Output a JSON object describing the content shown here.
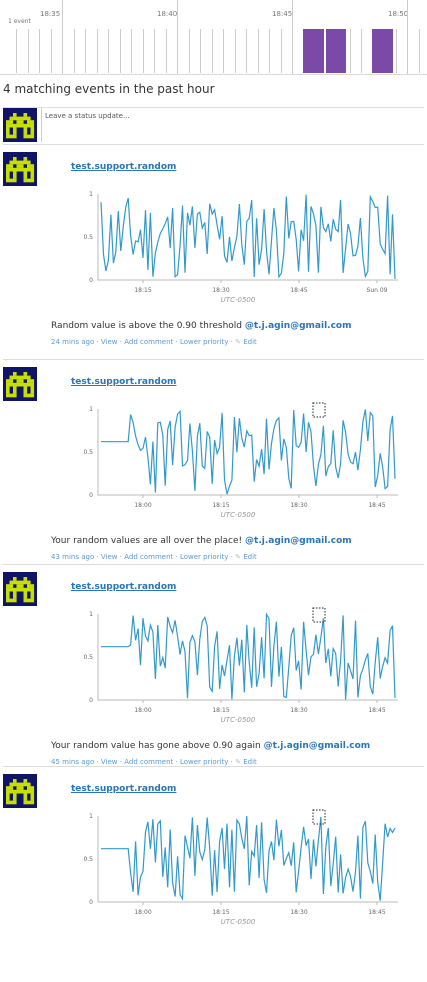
{
  "timeline": {
    "count_label": "1 event",
    "ticks": [
      "18:35",
      "18:40",
      "18:45",
      "18:50"
    ]
  },
  "headline": "4 matching events in the past hour",
  "status": {
    "placeholder": "Leave a status update..."
  },
  "colors": {
    "accent": "#2a74b8",
    "series": "#3399cc",
    "bar": "#7b4aa6",
    "avatar_bg": "#101464",
    "avatar_fg": "#c8e000"
  },
  "events": [
    {
      "source": "test.support.random",
      "message": "Random value is above the 0.90 threshold",
      "mention": "@t.j.agin@gmail.com",
      "meta": {
        "age": "24 mins ago",
        "view": "View",
        "comment": "Add comment",
        "priority": "Lower priority",
        "edit": "Edit"
      },
      "chart_data": {
        "type": "line",
        "y_ticks": [
          "0",
          "0.5",
          "1"
        ],
        "x_ticks": [
          "18:15",
          "18:30",
          "18:45",
          "Sun 09"
        ],
        "xlabel": "UTC-0500",
        "ylim": [
          0,
          1
        ],
        "seed": 11,
        "flat_start": false
      }
    },
    {
      "source": "test.support.random",
      "message": "Your random values are all over the place!",
      "mention": "@t.j.agin@gmail.com",
      "meta": {
        "age": "43 mins ago",
        "view": "View",
        "comment": "Add comment",
        "priority": "Lower priority",
        "edit": "Edit"
      },
      "chart_data": {
        "type": "line",
        "y_ticks": [
          "0",
          "0.5",
          "1"
        ],
        "x_ticks": [
          "18:00",
          "18:15",
          "18:30",
          "18:45"
        ],
        "xlabel": "UTC-0500",
        "ylim": [
          0,
          1
        ],
        "seed": 23,
        "flat_start": true
      }
    },
    {
      "source": "test.support.random",
      "message": "Your random value has gone above 0.90 again",
      "mention": "@t.j.agin@gmail.com",
      "meta": {
        "age": "45 mins ago",
        "view": "View",
        "comment": "Add comment",
        "priority": "Lower priority",
        "edit": "Edit"
      },
      "chart_data": {
        "type": "line",
        "y_ticks": [
          "0",
          "0.5",
          "1"
        ],
        "x_ticks": [
          "18:00",
          "18:15",
          "18:30",
          "18:45"
        ],
        "xlabel": "UTC-0500",
        "ylim": [
          0,
          1
        ],
        "seed": 37,
        "flat_start": true
      }
    },
    {
      "source": "test.support.random",
      "message": "",
      "mention": "",
      "meta": null,
      "chart_data": {
        "type": "line",
        "y_ticks": [
          "0",
          "0.5",
          "1"
        ],
        "x_ticks": [
          "18:00",
          "18:15",
          "18:30",
          "18:45"
        ],
        "xlabel": "UTC-0500",
        "ylim": [
          0,
          1
        ],
        "seed": 51,
        "flat_start": true
      }
    }
  ]
}
